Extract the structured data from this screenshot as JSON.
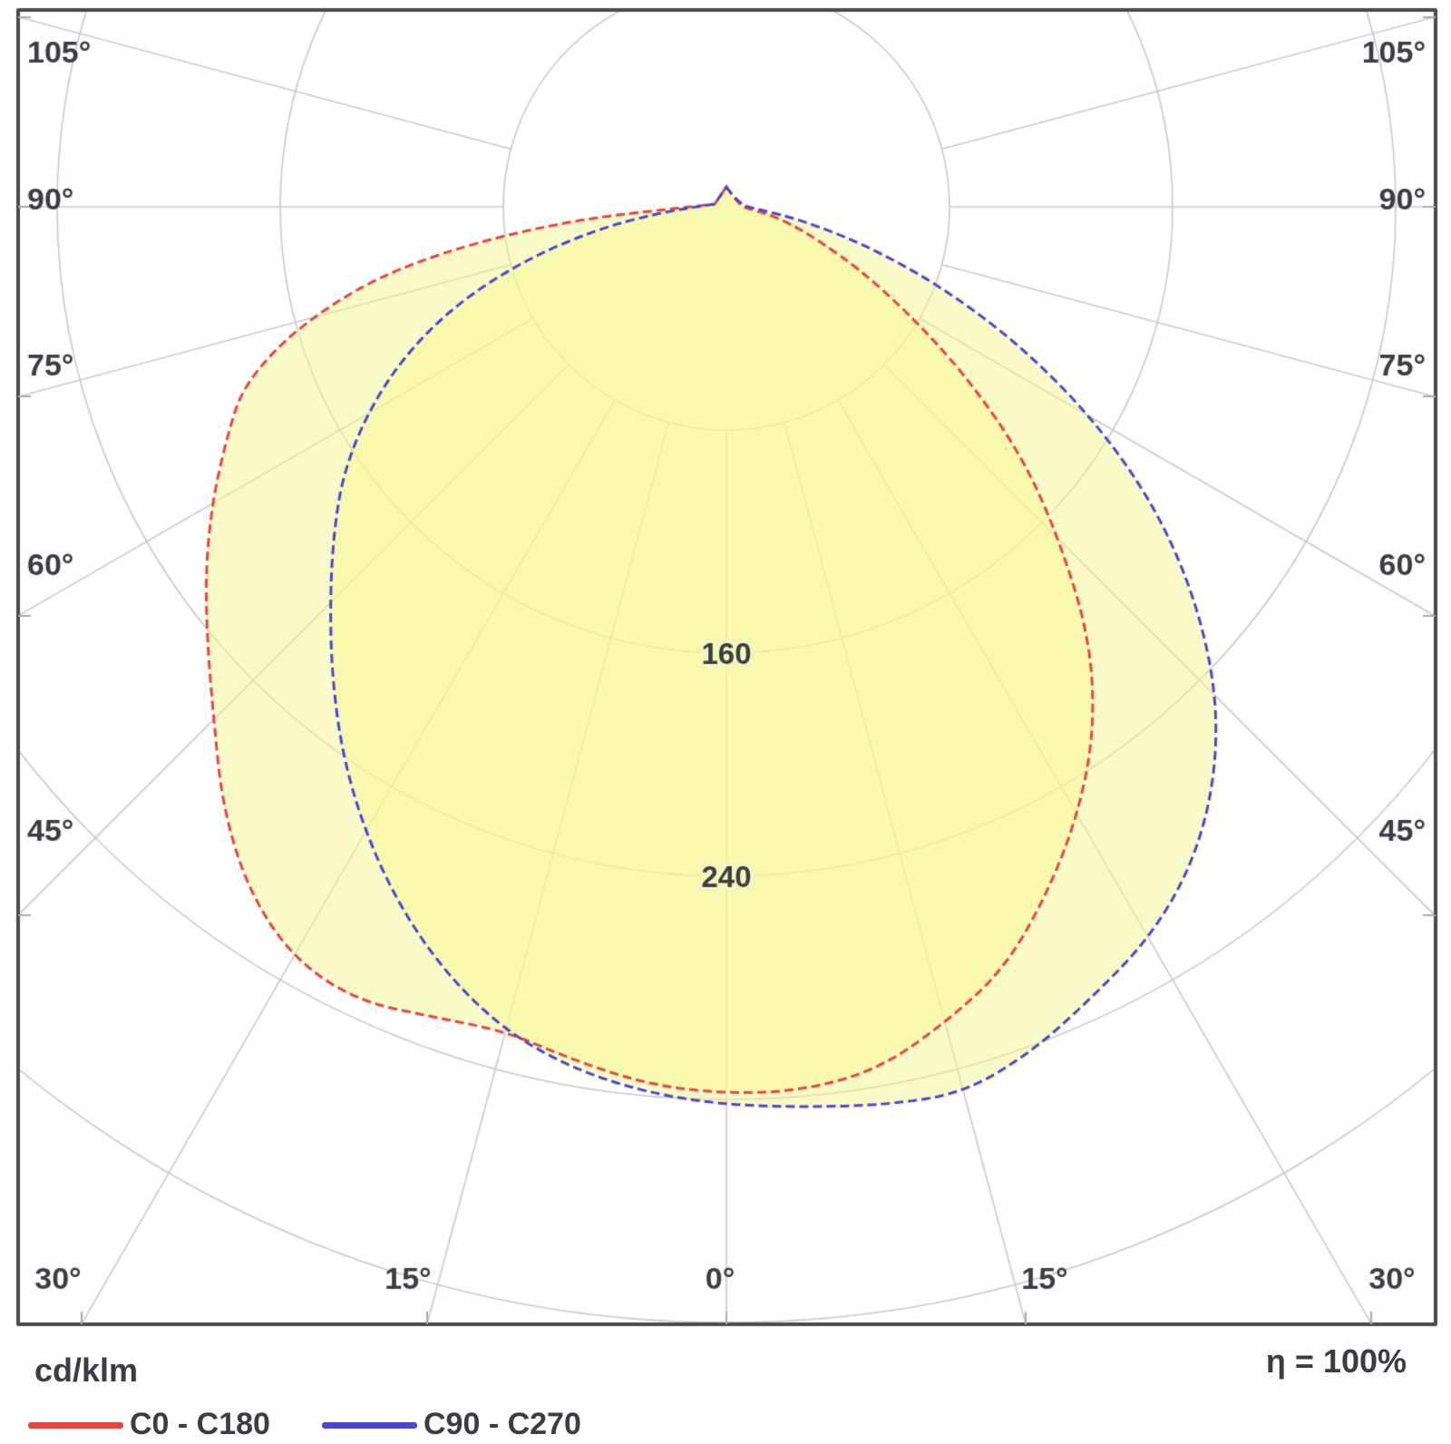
{
  "page": {
    "background": "#ffffff"
  },
  "footer": {
    "unit_label": "cd/klm",
    "efficiency_label": "η = 100%"
  },
  "legend": {
    "items": [
      {
        "label": "C0 - C180",
        "color": "#e8463e"
      },
      {
        "label": "C90 - C270",
        "color": "#4b45d8"
      }
    ]
  },
  "axis": {
    "side_labels": [
      "105°",
      "90°",
      "75°",
      "60°",
      "45°"
    ],
    "bottom_labels": [
      "30°",
      "15°",
      "0°",
      "15°",
      "30°"
    ],
    "ring_labels": [
      "160",
      "240"
    ]
  },
  "chart_data": {
    "type": "polar_photometric",
    "unit": "cd/klm",
    "efficiency": "η = 100%",
    "gamma_deg": [
      0,
      5,
      10,
      15,
      20,
      25,
      30,
      35,
      40,
      45,
      50,
      55,
      60,
      65,
      70,
      75,
      80,
      85,
      90
    ],
    "series": [
      {
        "name": "C0 - C180",
        "color": "#e8463e",
        "C0": [
          318,
          318,
          314,
          303,
          291,
          272,
          252,
          230,
          203,
          169,
          138,
          104,
          74,
          52,
          35,
          24,
          15,
          8,
          3
        ],
        "C180": [
          318,
          316,
          311,
          306,
          309,
          314,
          311,
          299,
          281,
          260,
          243,
          228,
          213,
          198,
          184,
          156,
          118,
          62,
          8
        ]
      },
      {
        "name": "C90 - C270",
        "color": "#4b45d8",
        "C90": [
          322,
          324,
          327,
          329,
          322,
          312,
          303,
          290,
          272,
          249,
          220,
          188,
          152,
          115,
          80,
          50,
          27,
          12,
          4
        ],
        "C270": [
          321,
          319,
          314,
          306,
          293,
          277,
          259,
          240,
          220,
          201,
          184,
          168,
          149,
          128,
          104,
          76,
          48,
          24,
          6
        ]
      }
    ],
    "rings": [
      80,
      160,
      240,
      320,
      400
    ],
    "ring_step": 80,
    "labeled_rings": [
      160,
      240
    ],
    "angle_grid_step_deg": 15,
    "max_grid_angle_deg": 105,
    "fill_color": "#f6f694",
    "fill_opacity": 0.5,
    "grid_color": "#c9c9c9",
    "frame_color": "#4a4a4a",
    "text_color": "#3b3d44",
    "legend_position": "bottom-left"
  }
}
